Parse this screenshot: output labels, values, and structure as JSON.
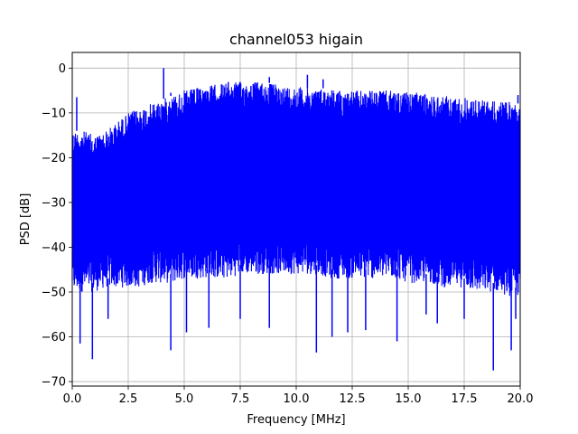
{
  "chart_data": {
    "type": "line",
    "title": "channel053 higain",
    "xlabel": "Frequency [MHz]",
    "ylabel": "PSD [dB]",
    "xlim": [
      0,
      20
    ],
    "ylim": [
      -71,
      3.5
    ],
    "xticks": [
      0,
      2.5,
      5,
      7.5,
      10,
      12.5,
      15,
      17.5,
      20
    ],
    "xtick_labels": [
      "0.0",
      "2.5",
      "5.0",
      "7.5",
      "10.0",
      "12.5",
      "15.0",
      "17.5",
      "20.0"
    ],
    "yticks": [
      0,
      -10,
      -20,
      -30,
      -40,
      -50,
      -60,
      -70
    ],
    "ytick_labels": [
      "0",
      "−10",
      "−20",
      "−30",
      "−40",
      "−50",
      "−60",
      "−70"
    ],
    "grid": true,
    "series": [
      {
        "color": "#0000ff",
        "envelope": {
          "x": [
            0,
            0.5,
            1,
            1.5,
            2,
            2.5,
            3,
            3.5,
            4,
            4.5,
            5,
            5.5,
            6,
            6.5,
            7,
            7.5,
            8,
            8.5,
            9,
            9.5,
            10,
            10.5,
            11,
            11.5,
            12,
            12.5,
            13,
            13.5,
            14,
            14.5,
            15,
            15.5,
            16,
            16.5,
            17,
            17.5,
            18,
            18.5,
            19,
            19.5,
            20
          ],
          "upper": [
            -14,
            -14,
            -15,
            -14,
            -12,
            -10,
            -9,
            -8,
            -7,
            -6,
            -5,
            -4.5,
            -4,
            -3.5,
            -3,
            -3,
            -3,
            -3,
            -3.5,
            -4,
            -4,
            -4.5,
            -4.5,
            -4.5,
            -5,
            -5,
            -5,
            -5,
            -5,
            -5,
            -5.5,
            -5.5,
            -6,
            -6,
            -6.5,
            -6.5,
            -7,
            -7,
            -7.5,
            -7.5,
            -8
          ],
          "lower": [
            -48,
            -48,
            -48,
            -47,
            -47,
            -47,
            -47,
            -46,
            -46,
            -46,
            -45,
            -45,
            -45,
            -45,
            -45,
            -44,
            -44,
            -44,
            -44,
            -44,
            -44,
            -44,
            -44,
            -45,
            -45,
            -45,
            -45,
            -45,
            -45,
            -45,
            -46,
            -46,
            -46,
            -47,
            -47,
            -47,
            -48,
            -48,
            -48,
            -49,
            -49
          ]
        },
        "peaks": [
          [
            0.2,
            -6.5
          ],
          [
            4.08,
            0
          ],
          [
            4.4,
            -5.5
          ],
          [
            8.8,
            -2
          ],
          [
            10.5,
            -1.5
          ],
          [
            11.2,
            -2.5
          ],
          [
            19.9,
            -6
          ]
        ],
        "dips": [
          [
            0.35,
            -61.5
          ],
          [
            0.9,
            -65
          ],
          [
            1.6,
            -56
          ],
          [
            4.4,
            -63
          ],
          [
            5.1,
            -59
          ],
          [
            6.1,
            -58
          ],
          [
            7.5,
            -56
          ],
          [
            8.8,
            -58
          ],
          [
            10.9,
            -63.5
          ],
          [
            11.6,
            -60
          ],
          [
            12.3,
            -59
          ],
          [
            13.1,
            -58.5
          ],
          [
            14.5,
            -61
          ],
          [
            15.8,
            -55
          ],
          [
            16.3,
            -57
          ],
          [
            17.5,
            -56
          ],
          [
            18.8,
            -67.5
          ],
          [
            19.6,
            -63
          ],
          [
            19.8,
            -56
          ]
        ]
      }
    ]
  }
}
